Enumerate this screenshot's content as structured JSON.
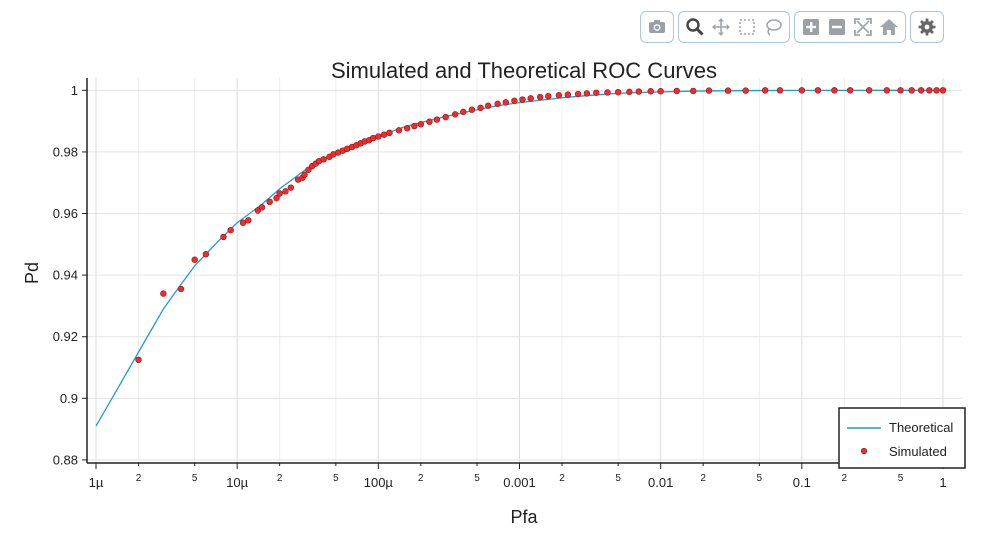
{
  "toolbar": {
    "groups": [
      [
        {
          "icon": "camera-icon"
        }
      ],
      [
        {
          "icon": "zoom-icon"
        },
        {
          "icon": "pan-icon"
        },
        {
          "icon": "box-select-icon"
        },
        {
          "icon": "lasso-select-icon"
        }
      ],
      [
        {
          "icon": "zoom-in-icon"
        },
        {
          "icon": "zoom-out-icon"
        },
        {
          "icon": "autoscale-icon"
        },
        {
          "icon": "reset-axes-icon"
        }
      ],
      [
        {
          "icon": "settings-icon"
        }
      ]
    ]
  },
  "chart_data": {
    "type": "line",
    "title": "Simulated and Theoretical ROC Curves",
    "xlabel": "Pfa",
    "ylabel": "Pd",
    "xscale": "log",
    "xlim": [
      1e-06,
      1
    ],
    "ylim": [
      0.879,
      1.004
    ],
    "grid": true,
    "legend_position": "bottom-right",
    "x_major_ticks": [
      {
        "value": 1e-06,
        "label": "1µ"
      },
      {
        "value": 1e-05,
        "label": "10µ"
      },
      {
        "value": 0.0001,
        "label": "100µ"
      },
      {
        "value": 0.001,
        "label": "0.001"
      },
      {
        "value": 0.01,
        "label": "0.01"
      },
      {
        "value": 0.1,
        "label": "0.1"
      },
      {
        "value": 1,
        "label": "1"
      }
    ],
    "x_minor_tick_labels": [
      "2",
      "5"
    ],
    "y_ticks": [
      {
        "value": 0.88,
        "label": "0.88"
      },
      {
        "value": 0.9,
        "label": "0.9"
      },
      {
        "value": 0.92,
        "label": "0.92"
      },
      {
        "value": 0.94,
        "label": "0.94"
      },
      {
        "value": 0.96,
        "label": "0.96"
      },
      {
        "value": 0.98,
        "label": "0.98"
      },
      {
        "value": 1,
        "label": "1"
      }
    ],
    "series": [
      {
        "name": "Theoretical",
        "kind": "line",
        "color": "#1f9bd8",
        "x": [
          1e-06,
          1.5e-06,
          2e-06,
          3e-06,
          4e-06,
          5e-06,
          7e-06,
          1e-05,
          1.5e-05,
          2e-05,
          3e-05,
          5e-05,
          7e-05,
          0.0001,
          0.00015,
          0.0002,
          0.0003,
          0.0005,
          0.0007,
          0.001,
          0.002,
          0.003,
          0.005,
          0.007,
          0.01,
          0.02,
          0.05,
          0.1,
          0.2,
          0.5,
          1
        ],
        "y": [
          0.891,
          0.905,
          0.915,
          0.929,
          0.937,
          0.943,
          0.95,
          0.957,
          0.963,
          0.968,
          0.974,
          0.9795,
          0.9825,
          0.985,
          0.988,
          0.9895,
          0.9915,
          0.9937,
          0.995,
          0.996,
          0.9976,
          0.9983,
          0.999,
          0.9993,
          0.9995,
          0.9998,
          0.99992,
          0.99997,
          0.99999,
          1.0,
          1.0
        ]
      },
      {
        "name": "Simulated",
        "kind": "markers",
        "color": "#ef2b2b",
        "x": [
          2e-06,
          3e-06,
          4e-06,
          5e-06,
          6e-06,
          8e-06,
          9e-06,
          1.1e-05,
          1.2e-05,
          1.4e-05,
          1.5e-05,
          1.7e-05,
          1.9e-05,
          2e-05,
          2.2e-05,
          2.4e-05,
          2.7e-05,
          2.9e-05,
          3e-05,
          3.2e-05,
          3.4e-05,
          3.6e-05,
          3.8e-05,
          4.1e-05,
          4.5e-05,
          4.8e-05,
          5.2e-05,
          5.6e-05,
          6e-05,
          6.5e-05,
          7e-05,
          7.5e-05,
          8e-05,
          8.6e-05,
          9.2e-05,
          0.0001,
          0.00011,
          0.00012,
          0.00014,
          0.00016,
          0.00018,
          0.0002,
          0.00023,
          0.00026,
          0.0003,
          0.00035,
          0.0004,
          0.00046,
          0.00053,
          0.0006,
          0.0007,
          0.0008,
          0.00092,
          0.00105,
          0.0012,
          0.0014,
          0.0016,
          0.0019,
          0.0022,
          0.0026,
          0.003,
          0.0035,
          0.0042,
          0.005,
          0.006,
          0.007,
          0.0085,
          0.01,
          0.013,
          0.017,
          0.022,
          0.03,
          0.04,
          0.055,
          0.07,
          0.1,
          0.13,
          0.17,
          0.22,
          0.3,
          0.4,
          0.5,
          0.6,
          0.7,
          0.8,
          0.9,
          1.0
        ],
        "y": [
          0.9125,
          0.934,
          0.9355,
          0.945,
          0.9468,
          0.9524,
          0.9546,
          0.957,
          0.9578,
          0.961,
          0.962,
          0.9638,
          0.965,
          0.9665,
          0.9672,
          0.9684,
          0.971,
          0.9716,
          0.9726,
          0.9742,
          0.9754,
          0.9762,
          0.977,
          0.9776,
          0.9784,
          0.9792,
          0.9798,
          0.9804,
          0.981,
          0.9816,
          0.9822,
          0.9828,
          0.9834,
          0.9838,
          0.9845,
          0.985,
          0.9856,
          0.9862,
          0.987,
          0.9877,
          0.9884,
          0.989,
          0.9898,
          0.9905,
          0.9913,
          0.9922,
          0.993,
          0.9937,
          0.9943,
          0.995,
          0.9956,
          0.9961,
          0.9966,
          0.997,
          0.9974,
          0.9978,
          0.9981,
          0.9984,
          0.9986,
          0.9988,
          0.999,
          0.9992,
          0.9993,
          0.9994,
          0.9995,
          0.9996,
          0.9997,
          0.9997,
          0.9998,
          0.9998,
          0.9999,
          0.9999,
          0.9999,
          1.0,
          1.0,
          1.0,
          1.0,
          1.0,
          1.0,
          1.0,
          1.0,
          1.0,
          1.0,
          1.0,
          1.0,
          1.0,
          1.0
        ]
      }
    ]
  }
}
